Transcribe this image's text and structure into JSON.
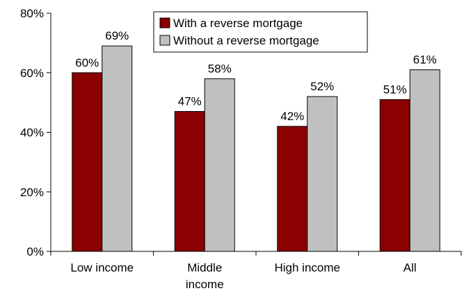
{
  "chart_data": {
    "type": "bar",
    "title": "",
    "xlabel": "",
    "ylabel": "",
    "ylim": [
      0,
      80
    ],
    "yticks": [
      "0%",
      "20%",
      "40%",
      "60%",
      "80%"
    ],
    "categories": [
      [
        "Low income"
      ],
      [
        "Middle",
        "income"
      ],
      [
        "High income"
      ],
      [
        "All"
      ]
    ],
    "series": [
      {
        "name": "With a reverse mortgage",
        "color": "#8B0000",
        "values": [
          60,
          47,
          42,
          51
        ],
        "labels": [
          "60%",
          "47%",
          "42%",
          "51%"
        ]
      },
      {
        "name": "Without a reverse mortgage",
        "color": "#C0C0C0",
        "values": [
          69,
          58,
          52,
          61
        ],
        "labels": [
          "69%",
          "58%",
          "52%",
          "61%"
        ]
      }
    ],
    "grid": false,
    "legend_position": "top-center"
  }
}
